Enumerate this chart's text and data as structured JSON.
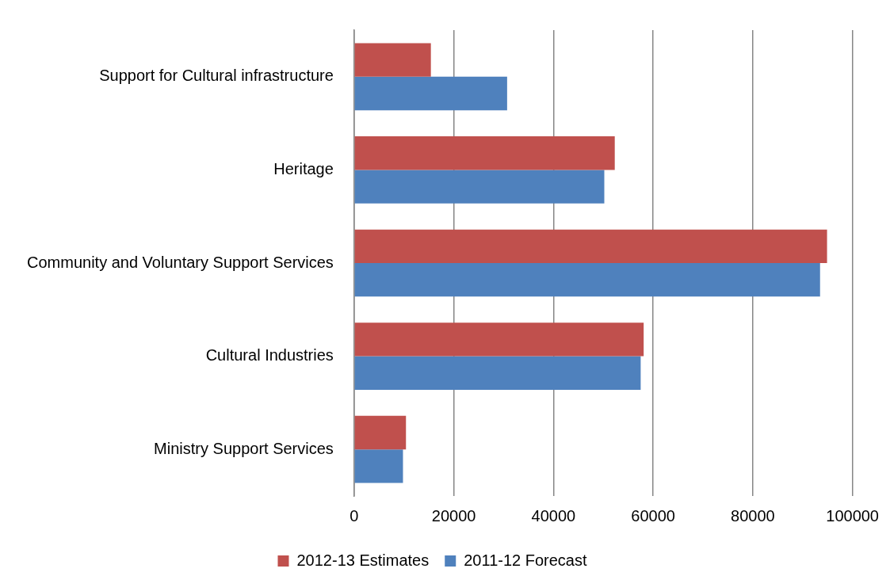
{
  "chart_data": {
    "type": "bar",
    "orientation": "horizontal",
    "categories": [
      "Support for Cultural infrastructure",
      "Heritage",
      "Community and Voluntary Support Services",
      "Cultural Industries",
      "Ministry Support Services"
    ],
    "series": [
      {
        "name": "2012-13 Estimates",
        "color": "#c0504d",
        "values": [
          15400,
          52300,
          94900,
          58100,
          10400
        ]
      },
      {
        "name": "2011-12 Forecast",
        "color": "#4f81bd",
        "values": [
          30700,
          50200,
          93500,
          57500,
          9800
        ]
      }
    ],
    "xlim": [
      0,
      100000
    ],
    "xticks": [
      0,
      20000,
      40000,
      60000,
      80000,
      100000
    ],
    "grid": "x",
    "legend": "bottom"
  }
}
